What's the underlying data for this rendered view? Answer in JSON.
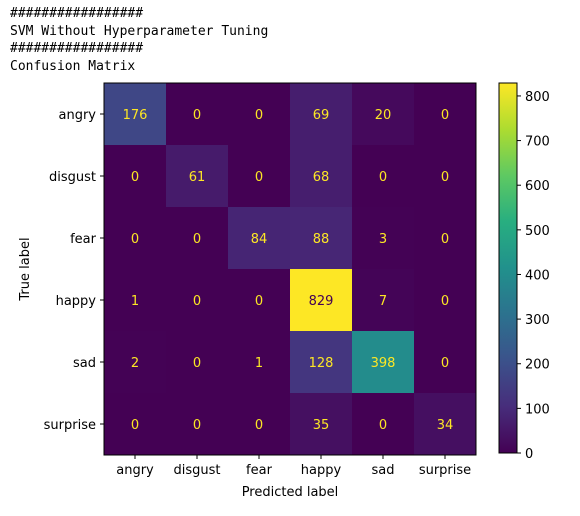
{
  "output_lines": [
    "#################",
    "SVM Without Hyperparameter Tuning",
    "#################",
    "Confusion Matrix"
  ],
  "chart_data": {
    "type": "heatmap",
    "title": "",
    "xlabel": "Predicted label",
    "ylabel": "True label",
    "x_categories": [
      "angry",
      "disgust",
      "fear",
      "happy",
      "sad",
      "surprise"
    ],
    "y_categories": [
      "angry",
      "disgust",
      "fear",
      "happy",
      "sad",
      "surprise"
    ],
    "values": [
      [
        176,
        0,
        0,
        69,
        20,
        0
      ],
      [
        0,
        61,
        0,
        68,
        0,
        0
      ],
      [
        0,
        0,
        84,
        88,
        3,
        0
      ],
      [
        1,
        0,
        0,
        829,
        7,
        0
      ],
      [
        2,
        0,
        1,
        128,
        398,
        0
      ],
      [
        0,
        0,
        0,
        35,
        0,
        34
      ]
    ],
    "colormap": "viridis",
    "vmin": 0,
    "vmax": 829,
    "colorbar_ticks": [
      0,
      100,
      200,
      300,
      400,
      500,
      600,
      700,
      800
    ],
    "annotation_colors": {
      "on_dark": "#fde725",
      "on_light": "#440154"
    }
  }
}
